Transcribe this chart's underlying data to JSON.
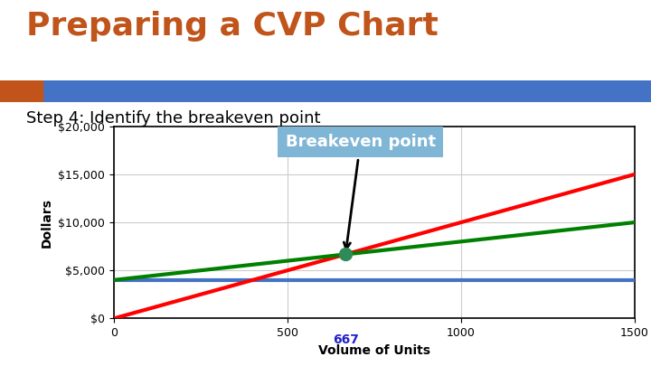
{
  "title": "Preparing a CVP Chart",
  "title_color": "#C0541A",
  "stripe_color_orange": "#C0541A",
  "stripe_color_blue": "#4472C4",
  "step_text": "Step 4: Identify the breakeven point",
  "xlabel": "Volume of Units",
  "ylabel": "Dollars",
  "xlim": [
    0,
    1500
  ],
  "ylim": [
    0,
    20000
  ],
  "xticks": [
    0,
    500,
    1000,
    1500
  ],
  "yticks": [
    0,
    5000,
    10000,
    15000,
    20000
  ],
  "ytick_labels": [
    "$0",
    "$5,000",
    "$10,000",
    "$15,000",
    "$20,000"
  ],
  "breakeven_x": 667,
  "breakeven_y": 6670,
  "fixed_cost": 4000,
  "red_line": {
    "x0": 0,
    "y0": 0,
    "x1": 1500,
    "y1": 15000
  },
  "green_line": {
    "x0": 0,
    "y0": 4000,
    "x1": 1500,
    "y1": 10000
  },
  "blue_line_y": 4000,
  "line_colors": {
    "red": "#FF0000",
    "green": "#008000",
    "blue": "#4472C4"
  },
  "line_widths": {
    "red": 3.0,
    "green": 3.0,
    "blue": 3.0
  },
  "annotation_label": "Breakeven point",
  "annotation_box_color": "#7FB5D5",
  "annotation_text_color": "#FFFFFF",
  "breakeven_dot_color": "#2E8B57",
  "breakeven_x_label": "667",
  "breakeven_x_label_color": "#2222CC",
  "bg_color": "#FFFFFF",
  "chart_bg": "#FFFFFF",
  "grid_color": "#CCCCCC",
  "title_fontsize": 26,
  "step_fontsize": 13,
  "tick_fontsize": 9,
  "axis_label_fontsize": 10,
  "annot_fontsize": 13
}
